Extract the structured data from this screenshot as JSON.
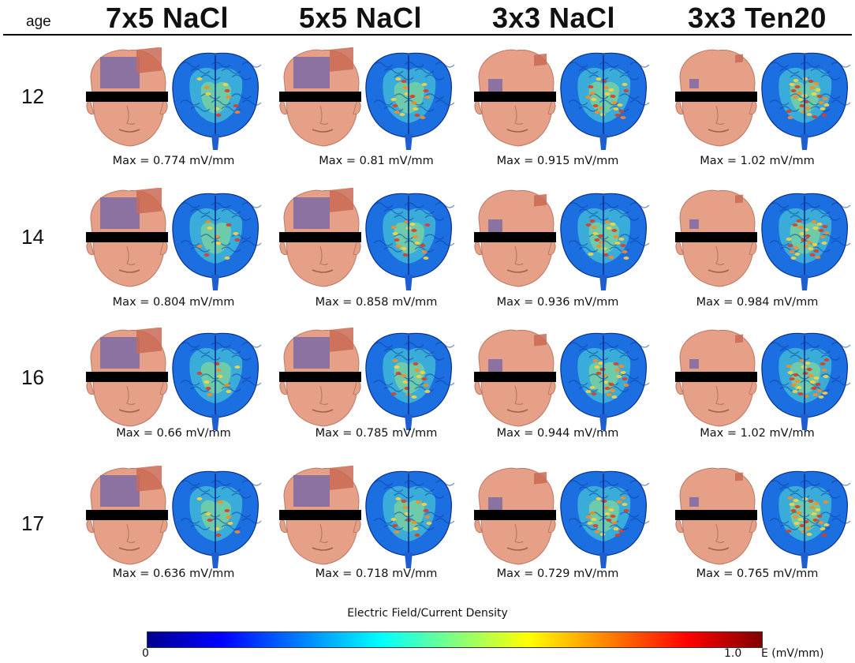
{
  "header": {
    "age_label": "age"
  },
  "columns": [
    {
      "label": "7x5 NaCl"
    },
    {
      "label": "5x5 NaCl"
    },
    {
      "label": "3x3 NaCl"
    },
    {
      "label": "3x3 Ten20"
    }
  ],
  "rows": [
    {
      "age": "12",
      "max_values": [
        "Max = 0.774 mV/mm",
        "Max = 0.81 mV/mm",
        "Max = 0.915 mV/mm",
        "Max = 1.02 mV/mm"
      ]
    },
    {
      "age": "14",
      "max_values": [
        "Max = 0.804 mV/mm",
        "Max = 0.858 mV/mm",
        "Max = 0.936 mV/mm",
        "Max = 0.984 mV/mm"
      ]
    },
    {
      "age": "16",
      "max_values": [
        "Max = 0.66 mV/mm",
        "Max = 0.785 mV/mm",
        "Max = 0.944 mV/mm",
        "Max = 1.02 mV/mm"
      ]
    },
    {
      "age": "17",
      "max_values": [
        "Max = 0.636 mV/mm",
        "Max = 0.718 mV/mm",
        "Max = 0.729 mV/mm",
        "Max = 0.765 mV/mm"
      ]
    }
  ],
  "colorbar": {
    "title": "Electric Field/Current Density",
    "min_label": "0",
    "max_label": "1.0",
    "unit_label": "E (mV/mm)",
    "colors": [
      "#00008f",
      "#0000ff",
      "#0080ff",
      "#00ffff",
      "#80ff80",
      "#ffff00",
      "#ff8000",
      "#ff0000",
      "#800000"
    ]
  },
  "colors": {
    "skin": "#e6a088",
    "anode_pad": "#7a6aa6",
    "cathode_pad": "#c96a55",
    "eye_bar": "#000000",
    "brain_base": "#1c6fe0"
  }
}
